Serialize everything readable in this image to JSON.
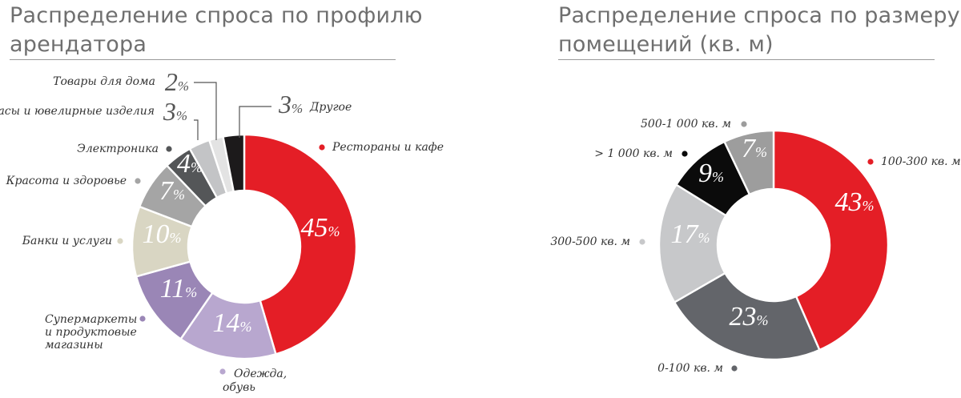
{
  "chart_data": [
    {
      "type": "pie",
      "title": "Распределение спроса по профилю арендатора",
      "donut": true,
      "start": "12 o'clock",
      "direction": "clockwise",
      "slices": [
        {
          "label": "Рестораны и кафе",
          "value": 45,
          "color": "#e41e26"
        },
        {
          "label": "Одежда, обувь, аксессуары",
          "value": 14,
          "color": "#b8a7cf"
        },
        {
          "label": "Супермаркеты и продуктовые магазины",
          "value": 11,
          "color": "#9a86b6"
        },
        {
          "label": "Банки и услуги",
          "value": 10,
          "color": "#d9d6c3"
        },
        {
          "label": "Красота и здоровье",
          "value": 7,
          "color": "#a5a5a5"
        },
        {
          "label": "Электроника",
          "value": 4,
          "color": "#545658"
        },
        {
          "label": "Часы и ювелирные изделия",
          "value": 3,
          "color": "#c3c4c6"
        },
        {
          "label": "Товары для дома",
          "value": 2,
          "color": "#e3e3e3"
        },
        {
          "label": "Другое",
          "value": 3,
          "color": "#1c1a1b"
        }
      ],
      "percent_sign": "%"
    },
    {
      "type": "pie",
      "title": "Распределение спроса по размеру помещений (кв. м)",
      "donut": true,
      "start": "12 o'clock",
      "direction": "clockwise",
      "slices": [
        {
          "label": "100-300 кв. м",
          "value": 43,
          "color": "#e41e26"
        },
        {
          "label": "0-100 кв. м",
          "value": 23,
          "color": "#63656a"
        },
        {
          "label": "300-500 кв. м",
          "value": 17,
          "color": "#c7c8ca"
        },
        {
          "label": "> 1 000 кв. м",
          "value": 9,
          "color": "#0b0b0b"
        },
        {
          "label": "500-1 000 кв. м",
          "value": 7,
          "color": "#9d9d9d"
        }
      ],
      "percent_sign": "%"
    }
  ],
  "titles": {
    "left_line1": "Распределение спроса по профилю",
    "left_line2": "арендатора",
    "right_line1": "Распределение спроса по размеру",
    "right_line2": "помещений (кв. м)"
  }
}
